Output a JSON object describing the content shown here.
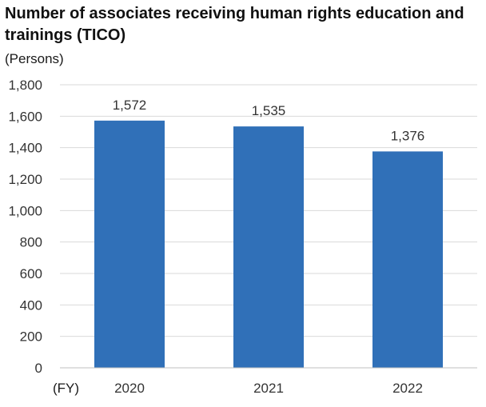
{
  "chart_data": {
    "type": "bar",
    "title": "Number of associates receiving human rights education and trainings (TICO)",
    "ylabel": "(Persons)",
    "xlabel": "(FY)",
    "categories": [
      "2020",
      "2021",
      "2022"
    ],
    "values": [
      1572,
      1535,
      1376
    ],
    "data_labels": [
      "1,572",
      "1,535",
      "1,376"
    ],
    "ylim": [
      0,
      1800
    ],
    "yticks": [
      0,
      200,
      400,
      600,
      800,
      1000,
      1200,
      1400,
      1600,
      1800
    ],
    "ytick_labels": [
      "0",
      "200",
      "400",
      "600",
      "800",
      "1,000",
      "1,200",
      "1,400",
      "1,600",
      "1,800"
    ],
    "grid": true,
    "bar_color": "#3070b8",
    "grid_color": "#d9d9d9"
  }
}
